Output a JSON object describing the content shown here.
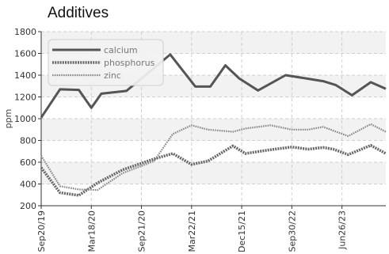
{
  "chart_data": {
    "type": "line",
    "title": "Additives",
    "ylabel": "ppm",
    "xlabel": "",
    "ylim": [
      200,
      1800
    ],
    "yticks": [
      200,
      400,
      600,
      800,
      1000,
      1200,
      1400,
      1600,
      1800
    ],
    "x_ticks": [
      "Sep20/19",
      "Mar18/20",
      "Sep21/20",
      "Mar22/21",
      "Dec15/21",
      "Sep30/22",
      "Jun26/23"
    ],
    "x_tick_positions": [
      0,
      4,
      8,
      12,
      16,
      20,
      24
    ],
    "x_count": 28,
    "grid": true,
    "legend_position": "top-left",
    "series": [
      {
        "name": "calcium",
        "color": "#555555",
        "style": "solid",
        "x": [
          0,
          1.5,
          3,
          4,
          4.8,
          6.8,
          10.3,
          12.3,
          13.5,
          14.7,
          15.8,
          17.3,
          19.5,
          22.5,
          23.5,
          24.8,
          26.3,
          27.5
        ],
        "values": [
          1010,
          1270,
          1265,
          1100,
          1230,
          1255,
          1590,
          1295,
          1295,
          1490,
          1370,
          1260,
          1400,
          1345,
          1310,
          1215,
          1335,
          1275
        ]
      },
      {
        "name": "phosphorus",
        "color": "#666666",
        "style": "dotted-thick",
        "x": [
          0,
          1.5,
          3,
          4.5,
          6.5,
          9,
          10.5,
          12,
          13.3,
          15.3,
          16.3,
          18.3,
          20,
          21.3,
          22.5,
          23.3,
          24.5,
          26.3,
          27.5
        ],
        "values": [
          550,
          320,
          295,
          410,
          530,
          630,
          680,
          580,
          610,
          750,
          680,
          715,
          740,
          720,
          735,
          720,
          670,
          755,
          680
        ]
      },
      {
        "name": "zinc",
        "color": "#888888",
        "style": "dotted-thin",
        "x": [
          0,
          1.5,
          3,
          4.5,
          6.5,
          9,
          10.5,
          12,
          13.3,
          15.3,
          16.3,
          18.3,
          20,
          21.3,
          22.5,
          23.3,
          24.5,
          26.3,
          27.5
        ],
        "values": [
          660,
          380,
          350,
          345,
          500,
          610,
          860,
          940,
          900,
          880,
          910,
          940,
          900,
          900,
          925,
          890,
          840,
          950,
          880
        ]
      }
    ]
  }
}
